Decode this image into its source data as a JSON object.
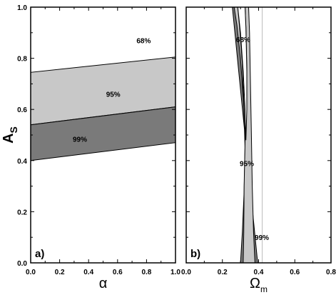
{
  "chart_data": [
    {
      "type": "area",
      "panel_label": "a)",
      "xlabel": "α",
      "ylabel": "A",
      "ylabel_subscript": "S",
      "xlim": [
        0.0,
        1.0
      ],
      "ylim": [
        0.0,
        1.0
      ],
      "x_ticks": [
        "0.0",
        "0.2",
        "0.4",
        "0.6",
        "0.8",
        "1.0"
      ],
      "y_ticks": [
        "0.0",
        "0.2",
        "0.4",
        "0.6",
        "0.8",
        "1.0"
      ],
      "grid": false,
      "regions": [
        {
          "label": "95%",
          "fill": "#c8c8c8",
          "lower": {
            "x": [
              0.0,
              1.0
            ],
            "y": [
              0.54,
              0.61
            ]
          },
          "upper": {
            "x": [
              0.0,
              1.0
            ],
            "y": [
              0.745,
              0.805
            ]
          }
        },
        {
          "label": "99%",
          "fill": "#7a7a7a",
          "lower": {
            "x": [
              0.0,
              1.0
            ],
            "y": [
              0.4,
              0.47
            ]
          },
          "upper": {
            "x": [
              0.0,
              1.0
            ],
            "y": [
              0.54,
              0.61
            ]
          }
        }
      ],
      "annotations": [
        {
          "text": "68%",
          "x": 0.78,
          "y": 0.87
        },
        {
          "text": "95%",
          "x": 0.57,
          "y": 0.66
        },
        {
          "text": "99%",
          "x": 0.34,
          "y": 0.485
        }
      ]
    },
    {
      "type": "area",
      "panel_label": "b)",
      "xlabel": "Ω",
      "xlabel_subscript": "m",
      "ylabel": "",
      "xlim": [
        0.0,
        0.8
      ],
      "ylim": [
        0.0,
        1.0
      ],
      "x_ticks": [
        "0.0",
        "0.2",
        "0.4",
        "0.6",
        "0.8"
      ],
      "y_ticks": [],
      "grid": false,
      "vertical_line_x": 0.42,
      "regions": [
        {
          "label": "99%",
          "fill": "#7a7a7a",
          "polygon": [
            [
              0.255,
              1.0
            ],
            [
              0.395,
              0.0
            ],
            [
              0.3,
              0.0
            ],
            [
              0.31,
              0.12
            ],
            [
              0.32,
              0.28
            ],
            [
              0.325,
              0.45
            ],
            [
              0.315,
              0.68
            ],
            [
              0.29,
              0.9
            ],
            [
              0.27,
              1.0
            ]
          ]
        },
        {
          "label": "95%",
          "fill": "#c8c8c8",
          "polygon": [
            [
              0.265,
              1.0
            ],
            [
              0.28,
              0.93
            ],
            [
              0.3,
              0.8
            ],
            [
              0.32,
              0.6
            ],
            [
              0.325,
              0.47
            ],
            [
              0.32,
              0.3
            ],
            [
              0.318,
              0.12
            ],
            [
              0.315,
              0.0
            ],
            [
              0.38,
              0.0
            ],
            [
              0.372,
              0.12
            ],
            [
              0.365,
              0.3
            ],
            [
              0.36,
              0.5
            ],
            [
              0.355,
              0.7
            ],
            [
              0.35,
              0.9
            ],
            [
              0.345,
              1.0
            ],
            [
              0.325,
              1.0
            ],
            [
              0.33,
              0.92
            ],
            [
              0.335,
              0.75
            ],
            [
              0.33,
              0.6
            ],
            [
              0.325,
              0.47
            ],
            [
              0.32,
              0.6
            ],
            [
              0.31,
              0.78
            ],
            [
              0.295,
              0.92
            ],
            [
              0.285,
              1.0
            ]
          ]
        },
        {
          "label": "68%",
          "fill": "#ffffff",
          "polygon": [
            [
              0.285,
              1.0
            ],
            [
              0.3,
              0.9
            ],
            [
              0.315,
              0.75
            ],
            [
              0.325,
              0.6
            ],
            [
              0.33,
              0.48
            ],
            [
              0.335,
              0.6
            ],
            [
              0.335,
              0.75
            ],
            [
              0.33,
              0.92
            ],
            [
              0.325,
              1.0
            ]
          ]
        }
      ],
      "annotations": [
        {
          "text": "68%",
          "x": 0.315,
          "y": 0.875
        },
        {
          "text": "95%",
          "x": 0.335,
          "y": 0.39
        },
        {
          "text": "99%",
          "x": 0.418,
          "y": 0.1
        }
      ]
    }
  ]
}
